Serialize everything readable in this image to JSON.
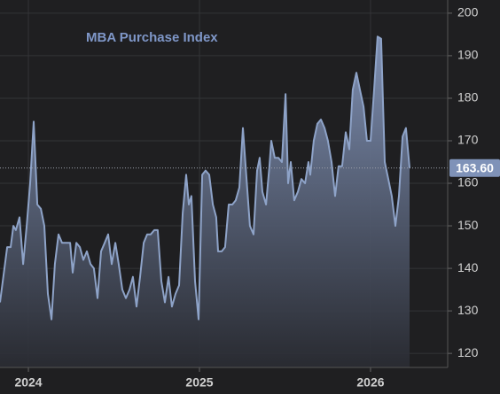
{
  "chart_data": {
    "type": "area",
    "title": "MBA Purchase Index",
    "x": [
      2023.834,
      2023.86,
      2023.876,
      2023.896,
      2023.912,
      2023.927,
      2023.948,
      2023.969,
      2023.99,
      2024.01,
      2024.031,
      2024.052,
      2024.073,
      2024.093,
      2024.114,
      2024.135,
      2024.155,
      2024.176,
      2024.197,
      2024.223,
      2024.244,
      2024.259,
      2024.28,
      2024.301,
      2024.321,
      2024.342,
      2024.363,
      2024.383,
      2024.404,
      2024.425,
      2024.446,
      2024.466,
      2024.487,
      2024.508,
      2024.528,
      2024.549,
      2024.57,
      2024.591,
      2024.611,
      2024.632,
      2024.653,
      2024.674,
      2024.694,
      2024.715,
      2024.736,
      2024.756,
      2024.777,
      2024.798,
      2024.819,
      2024.839,
      2024.86,
      2024.881,
      2024.902,
      2024.922,
      2024.938,
      2024.953,
      2024.974,
      2024.995,
      2025.016,
      2025.036,
      2025.057,
      2025.078,
      2025.098,
      2025.109,
      2025.13,
      2025.15,
      2025.171,
      2025.192,
      2025.212,
      2025.233,
      2025.254,
      2025.275,
      2025.295,
      2025.316,
      2025.337,
      2025.352,
      2025.368,
      2025.389,
      2025.409,
      2025.42,
      2025.44,
      2025.461,
      2025.482,
      2025.503,
      2025.518,
      2025.534,
      2025.554,
      2025.575,
      2025.596,
      2025.617,
      2025.637,
      2025.648,
      2025.668,
      2025.689,
      2025.71,
      2025.731,
      2025.751,
      2025.772,
      2025.793,
      2025.813,
      2025.834,
      2025.855,
      2025.876,
      2025.896,
      2025.917,
      2025.938,
      2025.959,
      2025.979,
      2026.0,
      2026.021,
      2026.041,
      2026.062,
      2026.083,
      2026.104,
      2026.124,
      2026.145,
      2026.166,
      2026.187,
      2026.207,
      2026.228
    ],
    "series": [
      {
        "name": "MBA Purchase Index",
        "color": "#8ea3c8",
        "values": [
          132,
          140,
          145,
          145,
          150,
          149,
          152,
          141,
          150,
          160,
          174.5,
          155,
          154,
          150,
          134,
          128,
          141,
          148,
          146,
          146,
          146,
          139,
          146,
          145,
          142,
          144,
          141,
          140,
          133,
          144,
          146,
          148,
          141,
          146,
          141,
          135,
          133,
          135,
          138,
          131,
          138,
          146,
          148,
          148,
          149,
          149,
          137,
          132,
          138,
          131,
          134,
          136,
          153,
          162,
          155,
          157,
          137,
          128,
          162,
          163,
          162,
          155,
          152,
          144,
          144,
          145,
          155,
          155,
          156,
          159,
          173,
          161,
          150,
          148,
          163,
          166,
          158,
          155,
          164,
          170,
          166,
          166,
          165,
          181,
          160,
          165,
          156,
          158,
          161,
          160,
          165,
          162,
          170,
          174,
          175,
          173,
          170,
          165,
          157,
          164,
          164,
          172,
          168,
          182,
          186,
          182,
          178,
          170,
          170,
          182,
          194.5,
          194,
          165,
          161,
          157,
          150,
          157,
          171,
          173,
          163.6
        ],
        "value_labels": [
          null,
          null,
          null,
          null,
          null,
          null,
          null,
          null,
          null,
          null,
          null,
          null,
          null,
          null,
          null,
          null,
          null,
          null,
          null,
          null,
          null,
          null,
          null,
          null,
          null,
          null,
          null,
          null,
          null,
          null,
          null,
          null,
          null,
          null,
          null,
          null,
          null,
          null,
          null,
          null,
          null,
          null,
          null,
          null,
          null,
          null,
          null,
          null,
          null,
          null,
          null,
          null,
          null,
          null,
          null,
          null,
          null,
          null,
          null,
          null,
          null,
          null,
          null,
          null,
          null,
          null,
          null,
          null,
          null,
          null,
          null,
          null,
          null,
          null,
          null,
          null,
          null,
          null,
          null,
          null,
          null,
          null,
          null,
          null,
          null,
          null,
          null,
          null,
          null,
          null,
          null,
          null,
          null,
          null,
          null,
          null,
          null,
          null,
          null,
          null,
          null,
          null,
          null,
          null,
          null,
          null,
          null,
          null,
          null,
          null,
          null,
          null,
          null,
          null,
          null,
          null,
          null,
          null,
          null,
          "163.60"
        ]
      }
    ],
    "xlim": [
      2023.834,
      2026.451
    ],
    "xticks": [
      2024,
      2025,
      2026
    ],
    "ylim": [
      116.7,
      203.1
    ],
    "yticks": [
      120,
      130,
      140,
      150,
      160,
      170,
      180,
      190,
      200
    ],
    "grid": true
  }
}
